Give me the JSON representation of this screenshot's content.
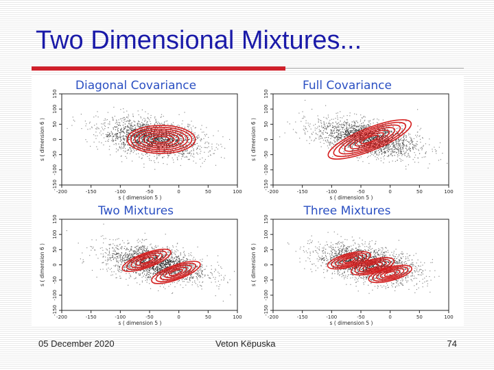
{
  "slide": {
    "title": "Two Dimensional Mixtures...",
    "footer_date": "05 December 2020",
    "footer_author": "Veton Këpuska",
    "page_number": "74"
  },
  "colors": {
    "title": "#1a1aa8",
    "panel_title": "#2a4fc2",
    "accent_bar": "#d0202a",
    "contour": "#d42020",
    "scatter": "#505050"
  },
  "chart_data": [
    {
      "type": "scatter",
      "title": "Diagonal Covariance",
      "xlabel": "s ( dimension 5 )",
      "ylabel": "s ( dimension 6 )",
      "xlim": [
        -200,
        100
      ],
      "ylim": [
        -150,
        150
      ],
      "xticks": [
        -200,
        -150,
        -100,
        -50,
        0,
        50,
        100
      ],
      "yticks": [
        -150,
        -100,
        -50,
        0,
        50,
        100,
        150
      ],
      "xtick_labels": [
        "-200",
        "-150",
        "-100",
        "-50",
        "0",
        "50",
        "100"
      ],
      "ytick_labels": [
        "-150",
        "-100",
        "-50",
        "0",
        "50",
        "100",
        "150"
      ],
      "scatter_cloud": {
        "center": [
          -45,
          5
        ],
        "sd": [
          45,
          32
        ],
        "rho": -0.35
      },
      "contours": [
        {
          "center": [
            -30,
            0
          ],
          "rx": [
            14,
            22,
            30,
            38,
            45,
            52,
            58
          ],
          "ry": [
            10,
            16,
            22,
            28,
            34,
            40,
            46
          ],
          "rotation_deg": 0
        }
      ]
    },
    {
      "type": "scatter",
      "title": "Full Covariance",
      "xlabel": "s ( dimension 5 )",
      "ylabel": "s ( dimension 6 )",
      "xlim": [
        -200,
        100
      ],
      "ylim": [
        -150,
        150
      ],
      "xticks": [
        -200,
        -150,
        -100,
        -50,
        0,
        50,
        100
      ],
      "yticks": [
        -150,
        -100,
        -50,
        0,
        50,
        100,
        150
      ],
      "xtick_labels": [
        "-200",
        "-150",
        "-100",
        "-50",
        "0",
        "50",
        "100"
      ],
      "ytick_labels": [
        "-150",
        "-100",
        "-50",
        "0",
        "50",
        "100",
        "150"
      ],
      "scatter_cloud": {
        "center": [
          -40,
          5
        ],
        "sd": [
          45,
          32
        ],
        "rho": -0.45
      },
      "contours": [
        {
          "center": [
            -35,
            0
          ],
          "rx": [
            16,
            26,
            36,
            46,
            56,
            66,
            76
          ],
          "ry": [
            8,
            12,
            17,
            22,
            27,
            32,
            37
          ],
          "rotation_deg": -22
        }
      ]
    },
    {
      "type": "scatter",
      "title": "Two Mixtures",
      "xlabel": "s ( dimension 5 )",
      "ylabel": "s ( dimension 6 )",
      "xlim": [
        -200,
        100
      ],
      "ylim": [
        -150,
        150
      ],
      "xticks": [
        -200,
        -150,
        -100,
        -50,
        0,
        50,
        100
      ],
      "yticks": [
        -150,
        -100,
        -50,
        0,
        50,
        100,
        150
      ],
      "xtick_labels": [
        "-200",
        "-150",
        "-100",
        "-50",
        "0",
        "50",
        "100"
      ],
      "ytick_labels": [
        "-150",
        "-100",
        "-50",
        "0",
        "50",
        "100",
        "150"
      ],
      "scatter_cloud": {
        "center": [
          -40,
          5
        ],
        "sd": [
          45,
          32
        ],
        "rho": -0.45
      },
      "contours": [
        {
          "center": [
            -55,
            15
          ],
          "rx": [
            12,
            20,
            28,
            36,
            44
          ],
          "ry": [
            7,
            11,
            16,
            20,
            24
          ],
          "rotation_deg": -20
        },
        {
          "center": [
            -5,
            -25
          ],
          "rx": [
            12,
            20,
            28,
            36,
            44
          ],
          "ry": [
            7,
            11,
            16,
            20,
            24
          ],
          "rotation_deg": -20
        }
      ]
    },
    {
      "type": "scatter",
      "title": "Three Mixtures",
      "xlabel": "s ( dimension 5 )",
      "ylabel": "s ( dimension 6 )",
      "xlim": [
        -200,
        100
      ],
      "ylim": [
        -150,
        150
      ],
      "xticks": [
        -200,
        -150,
        -100,
        -50,
        0,
        50,
        100
      ],
      "yticks": [
        -150,
        -100,
        -50,
        0,
        50,
        100,
        150
      ],
      "xtick_labels": [
        "-200",
        "-150",
        "-100",
        "-50",
        "0",
        "50",
        "100"
      ],
      "ytick_labels": [
        "-150",
        "-100",
        "-50",
        "0",
        "50",
        "100",
        "150"
      ],
      "scatter_cloud": {
        "center": [
          -40,
          5
        ],
        "sd": [
          45,
          32
        ],
        "rho": -0.45
      },
      "contours": [
        {
          "center": [
            -70,
            15
          ],
          "rx": [
            10,
            17,
            24,
            31,
            38
          ],
          "ry": [
            6,
            10,
            14,
            18,
            22
          ],
          "rotation_deg": -15
        },
        {
          "center": [
            -30,
            -5
          ],
          "rx": [
            10,
            17,
            24,
            31,
            38
          ],
          "ry": [
            6,
            10,
            14,
            18,
            22
          ],
          "rotation_deg": -15
        },
        {
          "center": [
            0,
            -30
          ],
          "rx": [
            10,
            17,
            24,
            31,
            38
          ],
          "ry": [
            6,
            10,
            14,
            18,
            22
          ],
          "rotation_deg": -15
        }
      ]
    }
  ]
}
